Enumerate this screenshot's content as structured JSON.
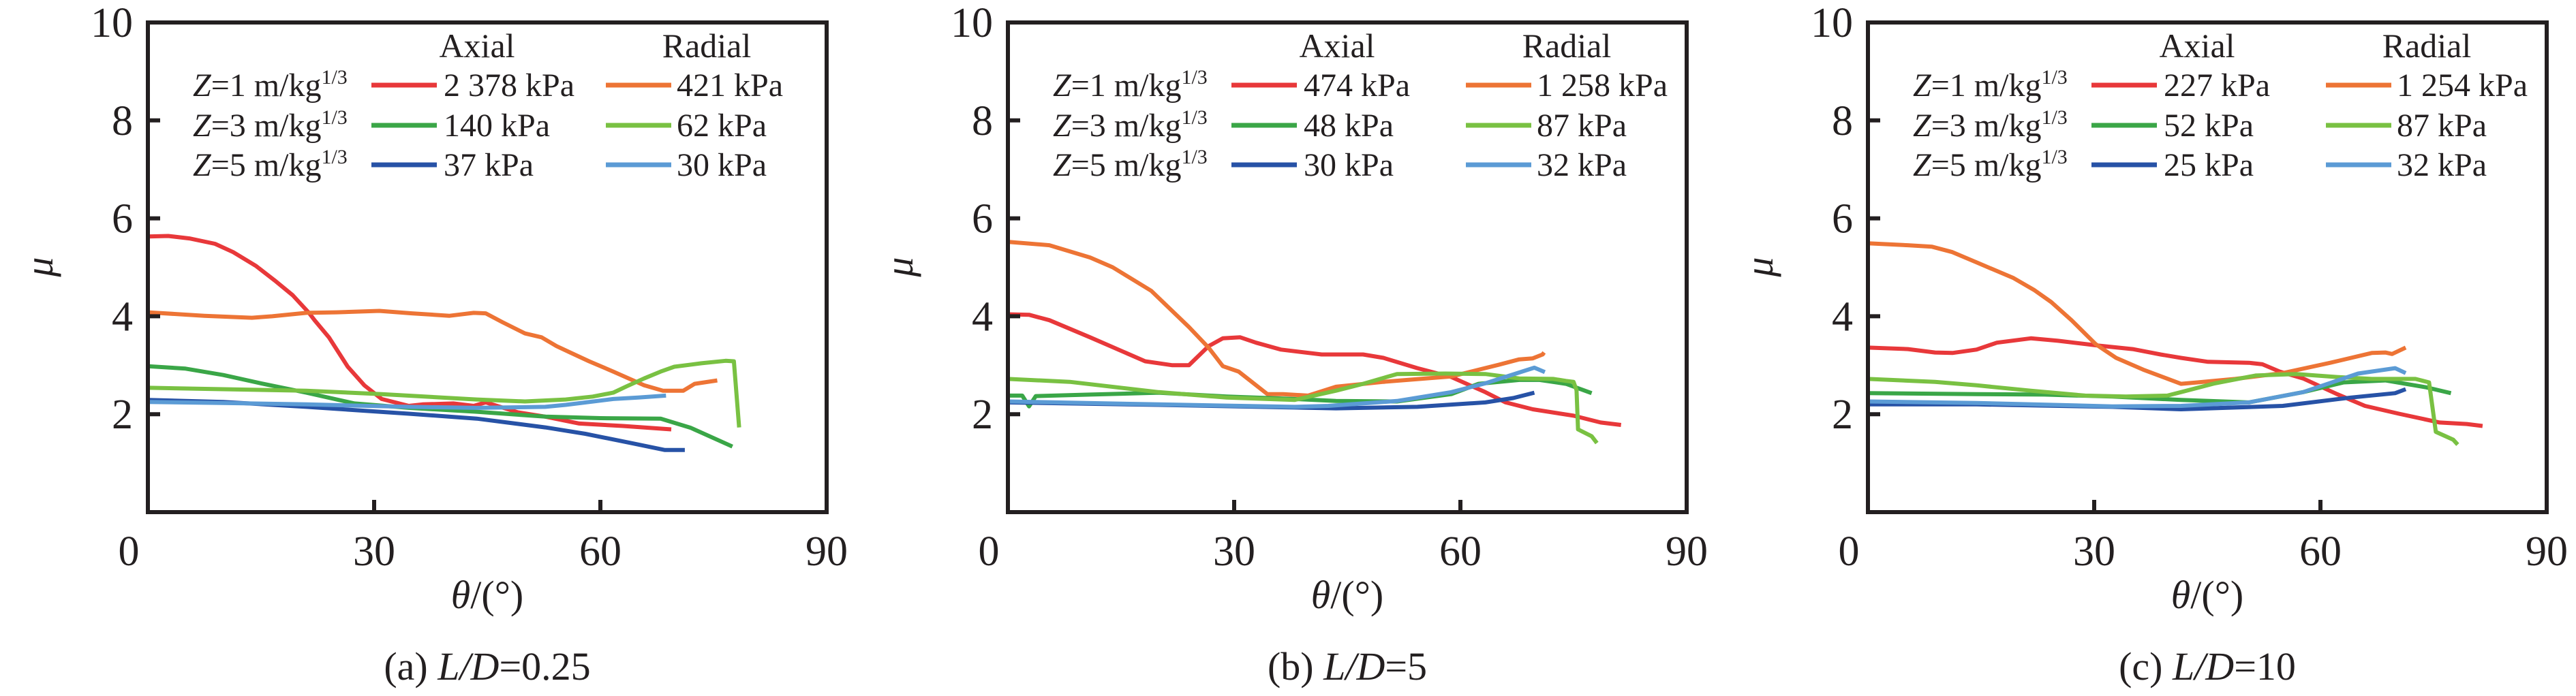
{
  "figure": {
    "panels_count": 3
  },
  "chart_data": [
    {
      "type": "line",
      "caption": "(a) L/D=0.25",
      "caption_prefix": "(a) ",
      "caption_var": "L/D",
      "caption_value": "=0.25",
      "xlabel": "θ/(°)",
      "xlabel_var": "θ",
      "xlabel_unit": "/(°)",
      "ylabel": "μ",
      "xlim": [
        0,
        90
      ],
      "ylim": [
        0,
        10
      ],
      "xticks": [
        0,
        30,
        60,
        90
      ],
      "yticks": [
        2,
        4,
        6,
        8,
        10
      ],
      "grid": false,
      "legend": {
        "placement": "top-right",
        "column_headers": [
          "Axial",
          "Radial"
        ],
        "row_labels": [
          "Z=1 m/kg1/3",
          "Z=3 m/kg1/3",
          "Z=5 m/kg1/3"
        ],
        "row_label_parts": [
          {
            "var": "Z",
            "eq": "=1 m/kg",
            "sup": "1/3"
          },
          {
            "var": "Z",
            "eq": "=3 m/kg",
            "sup": "1/3"
          },
          {
            "var": "Z",
            "eq": "=5 m/kg",
            "sup": "1/3"
          }
        ]
      },
      "series": [
        {
          "name": "Z=1 Axial 2 378 kPa",
          "label": "2 378 kPa",
          "group": "Axial",
          "Z": 1,
          "color": "#e8383a",
          "x": [
            0,
            2.7,
            5.5,
            8.9,
            11.3,
            14.3,
            17,
            19.2,
            21.3,
            22.1,
            24,
            26.5,
            28.7,
            31,
            34.6,
            36.4,
            40.5,
            43.2,
            44.8,
            49,
            52.7,
            57.2,
            63,
            69.4
          ],
          "y": [
            5.63,
            5.64,
            5.59,
            5.48,
            5.31,
            5.03,
            4.71,
            4.43,
            4.08,
            3.92,
            3.57,
            2.97,
            2.59,
            2.31,
            2.17,
            2.2,
            2.22,
            2.17,
            2.24,
            2.04,
            1.95,
            1.81,
            1.76,
            1.69
          ]
        },
        {
          "name": "Z=1 Radial 421 kPa",
          "label": "421 kPa",
          "group": "Radial",
          "Z": 1,
          "color": "#ed7435",
          "x": [
            0,
            7.5,
            13.8,
            16.5,
            21,
            25,
            30.7,
            35,
            40,
            43.2,
            44.8,
            47,
            50,
            52.2,
            54.2,
            56,
            58.5,
            61.7,
            65.8,
            68.3,
            71,
            72.5,
            75.5
          ],
          "y": [
            4.08,
            4.01,
            3.97,
            4.0,
            4.07,
            4.08,
            4.11,
            4.06,
            4.01,
            4.07,
            4.06,
            3.88,
            3.65,
            3.57,
            3.39,
            3.26,
            3.08,
            2.87,
            2.59,
            2.48,
            2.48,
            2.62,
            2.69
          ]
        },
        {
          "name": "Z=3 Axial 140 kPa",
          "label": "140 kPa",
          "group": "Axial",
          "Z": 3,
          "color": "#3aa647",
          "x": [
            0,
            5,
            10,
            15,
            21,
            27.4,
            34.6,
            43.6,
            52.7,
            60,
            68,
            72,
            77.5
          ],
          "y": [
            2.98,
            2.93,
            2.8,
            2.63,
            2.44,
            2.22,
            2.13,
            2.05,
            1.95,
            1.92,
            1.91,
            1.72,
            1.34
          ]
        },
        {
          "name": "Z=3 Radial 62 kPa",
          "label": "62 kPa",
          "group": "Radial",
          "Z": 3,
          "color": "#79c142",
          "x": [
            0,
            10,
            21,
            31,
            43.6,
            50,
            55.4,
            59,
            61.7,
            63.5,
            65.8,
            68,
            69.8,
            73.4,
            76.6,
            77.7,
            78.4
          ],
          "y": [
            2.54,
            2.51,
            2.48,
            2.41,
            2.3,
            2.26,
            2.3,
            2.36,
            2.44,
            2.57,
            2.73,
            2.87,
            2.97,
            3.04,
            3.09,
            3.08,
            1.73
          ]
        },
        {
          "name": "Z=5 Axial 37 kPa",
          "label": "37 kPa",
          "group": "Axial",
          "Z": 5,
          "color": "#2752a6",
          "x": [
            0,
            10,
            21,
            34.6,
            43.6,
            52.7,
            58,
            64.4,
            68.5,
            71.2
          ],
          "y": [
            2.29,
            2.25,
            2.15,
            2.01,
            1.91,
            1.73,
            1.6,
            1.4,
            1.27,
            1.27
          ]
        },
        {
          "name": "Z=5 Radial 30 kPa",
          "label": "30 kPa",
          "group": "Radial",
          "Z": 5,
          "color": "#5b9bd5",
          "x": [
            0,
            10,
            21,
            34.6,
            43.6,
            52.7,
            55.4,
            61.7,
            65,
            68.7
          ],
          "y": [
            2.25,
            2.23,
            2.2,
            2.15,
            2.13,
            2.15,
            2.19,
            2.31,
            2.34,
            2.38
          ]
        }
      ]
    },
    {
      "type": "line",
      "caption": "(b) L/D=5",
      "caption_prefix": "(b) ",
      "caption_var": "L/D",
      "caption_value": "=5",
      "xlabel": "θ/(°)",
      "xlabel_var": "θ",
      "xlabel_unit": "/(°)",
      "ylabel": "μ",
      "xlim": [
        0,
        90
      ],
      "ylim": [
        0,
        10
      ],
      "xticks": [
        0,
        30,
        60,
        90
      ],
      "yticks": [
        2,
        4,
        6,
        8,
        10
      ],
      "grid": false,
      "legend": {
        "placement": "top-right",
        "column_headers": [
          "Axial",
          "Radial"
        ],
        "row_labels": [
          "Z=1 m/kg1/3",
          "Z=3 m/kg1/3",
          "Z=5 m/kg1/3"
        ],
        "row_label_parts": [
          {
            "var": "Z",
            "eq": "=1 m/kg",
            "sup": "1/3"
          },
          {
            "var": "Z",
            "eq": "=3 m/kg",
            "sup": "1/3"
          },
          {
            "var": "Z",
            "eq": "=5 m/kg",
            "sup": "1/3"
          }
        ]
      },
      "series": [
        {
          "name": "Z=1 Axial 474 kPa",
          "label": "474 kPa",
          "group": "Axial",
          "Z": 1,
          "color": "#e8383a",
          "x": [
            0,
            2.8,
            5.5,
            10.9,
            18.2,
            21.8,
            24,
            26.6,
            28.5,
            30.8,
            32.9,
            36.2,
            41.6,
            47.1,
            49.8,
            54.3,
            58.8,
            63.3,
            66,
            69.6,
            75,
            78.6,
            81.3
          ],
          "y": [
            4.04,
            4.03,
            3.92,
            3.57,
            3.08,
            3.0,
            3.0,
            3.39,
            3.55,
            3.57,
            3.46,
            3.32,
            3.22,
            3.22,
            3.15,
            2.94,
            2.76,
            2.45,
            2.24,
            2.1,
            1.97,
            1.83,
            1.78
          ]
        },
        {
          "name": "Z=1 Radial 1 258 kPa",
          "label": "1 258 kPa",
          "group": "Radial",
          "Z": 1,
          "color": "#ed7435",
          "x": [
            0,
            5.5,
            10.9,
            13.9,
            19,
            24,
            26.6,
            28.5,
            30.6,
            34.4,
            36.5,
            39.8,
            43.5,
            49.8,
            58.8,
            65.1,
            67.8,
            69.6,
            70.9,
            71.1
          ],
          "y": [
            5.52,
            5.45,
            5.2,
            5.0,
            4.52,
            3.78,
            3.36,
            2.98,
            2.87,
            2.41,
            2.41,
            2.38,
            2.56,
            2.66,
            2.77,
            3.01,
            3.12,
            3.14,
            3.22,
            3.26
          ]
        },
        {
          "name": "Z=3 Axial 48 kPa",
          "label": "48 kPa",
          "group": "Axial",
          "Z": 3,
          "color": "#3aa647",
          "x": [
            0,
            1.9,
            2.8,
            3.7,
            10.9,
            20,
            29,
            38,
            43.5,
            51.6,
            58.8,
            62.4,
            67.8,
            70.5,
            74,
            77.4
          ],
          "y": [
            2.38,
            2.38,
            2.16,
            2.37,
            2.4,
            2.44,
            2.36,
            2.31,
            2.27,
            2.26,
            2.41,
            2.62,
            2.7,
            2.7,
            2.62,
            2.43
          ]
        },
        {
          "name": "Z=3 Radial 87 kPa",
          "label": "87 kPa",
          "group": "Radial",
          "Z": 3,
          "color": "#79c142",
          "x": [
            0,
            8.2,
            20,
            29,
            38,
            43.5,
            47.1,
            51.6,
            58,
            63.3,
            67.8,
            72.3,
            74,
            75,
            75.4,
            75.6,
            77.4,
            78.1
          ],
          "y": [
            2.72,
            2.66,
            2.45,
            2.34,
            2.29,
            2.48,
            2.62,
            2.82,
            2.83,
            2.82,
            2.73,
            2.72,
            2.68,
            2.66,
            2.49,
            1.69,
            1.55,
            1.41
          ]
        },
        {
          "name": "Z=5 Axial 30 kPa",
          "label": "30 kPa",
          "group": "Axial",
          "Z": 5,
          "color": "#2752a6",
          "x": [
            0,
            20,
            43.5,
            54.3,
            63.3,
            67,
            69.8
          ],
          "y": [
            2.24,
            2.19,
            2.12,
            2.15,
            2.24,
            2.33,
            2.44
          ]
        },
        {
          "name": "Z=5 Radial 32 kPa",
          "label": "32 kPa",
          "group": "Radial",
          "Z": 5,
          "color": "#5b9bd5",
          "x": [
            0,
            20,
            38,
            42.5,
            51.6,
            58.8,
            63.3,
            69.8,
            71.2
          ],
          "y": [
            2.26,
            2.2,
            2.15,
            2.17,
            2.27,
            2.45,
            2.63,
            2.95,
            2.86
          ]
        }
      ]
    },
    {
      "type": "line",
      "caption": "(c) L/D=10",
      "caption_prefix": "(c) ",
      "caption_var": "L/D",
      "caption_value": "=10",
      "xlabel": "θ/(°)",
      "xlabel_var": "θ",
      "xlabel_unit": "/(°)",
      "ylabel": "μ",
      "xlim": [
        0,
        90
      ],
      "ylim": [
        0,
        10
      ],
      "xticks": [
        0,
        30,
        60,
        90
      ],
      "yticks": [
        2,
        4,
        6,
        8,
        10
      ],
      "grid": false,
      "legend": {
        "placement": "top-right",
        "column_headers": [
          "Axial",
          "Radial"
        ],
        "row_labels": [
          "Z=1 m/kg1/3",
          "Z=3 m/kg1/3",
          "Z=5 m/kg1/3"
        ],
        "row_label_parts": [
          {
            "var": "Z",
            "eq": "=1 m/kg",
            "sup": "1/3"
          },
          {
            "var": "Z",
            "eq": "=3 m/kg",
            "sup": "1/3"
          },
          {
            "var": "Z",
            "eq": "=5 m/kg",
            "sup": "1/3"
          }
        ]
      },
      "series": [
        {
          "name": "Z=1 Axial 227 kPa",
          "label": "227 kPa",
          "group": "Axial",
          "Z": 1,
          "color": "#e8383a",
          "x": [
            0,
            5.3,
            8.9,
            11.2,
            14.4,
            17.1,
            21.6,
            25.2,
            30.6,
            35.1,
            38.8,
            41.5,
            45.1,
            50.5,
            52.3,
            54.6,
            57.7,
            62.2,
            65.9,
            70.4,
            75.8,
            79.4,
            81.5
          ],
          "y": [
            3.36,
            3.33,
            3.26,
            3.25,
            3.32,
            3.46,
            3.55,
            3.5,
            3.4,
            3.33,
            3.22,
            3.15,
            3.07,
            3.05,
            3.02,
            2.87,
            2.73,
            2.41,
            2.17,
            2.01,
            1.83,
            1.8,
            1.76
          ]
        },
        {
          "name": "Z=1 Radial 1 254 kPa",
          "label": "1 254 kPa",
          "group": "Radial",
          "Z": 1,
          "color": "#ed7435",
          "x": [
            0,
            5.3,
            8.5,
            11.2,
            14.4,
            19.3,
            22,
            24.3,
            27,
            30.2,
            32.9,
            36.5,
            41.5,
            43.7,
            48.7,
            55,
            61.3,
            66.8,
            68.6,
            69.5,
            71.3
          ],
          "y": [
            5.49,
            5.45,
            5.42,
            5.31,
            5.1,
            4.78,
            4.54,
            4.29,
            3.92,
            3.43,
            3.15,
            2.91,
            2.62,
            2.65,
            2.72,
            2.84,
            3.05,
            3.25,
            3.26,
            3.23,
            3.36
          ]
        },
        {
          "name": "Z=3 Axial 52 kPa",
          "label": "52 kPa",
          "group": "Axial",
          "Z": 3,
          "color": "#3aa647",
          "x": [
            0,
            14.4,
            23.4,
            32.4,
            41.5,
            50.5,
            57.7,
            63.1,
            68.6,
            74,
            77.3
          ],
          "y": [
            2.43,
            2.41,
            2.4,
            2.36,
            2.29,
            2.24,
            2.45,
            2.65,
            2.69,
            2.55,
            2.43
          ]
        },
        {
          "name": "Z=3 Radial 87 kPa",
          "label": "87 kPa",
          "group": "Radial",
          "Z": 3,
          "color": "#79c142",
          "x": [
            0,
            8.9,
            14.4,
            21.6,
            28.8,
            34.2,
            39.7,
            41.5,
            46,
            51.4,
            56.8,
            62.2,
            66.8,
            72.6,
            74.4,
            75.3,
            77.6,
            78.2
          ],
          "y": [
            2.72,
            2.66,
            2.59,
            2.48,
            2.38,
            2.36,
            2.38,
            2.45,
            2.63,
            2.79,
            2.82,
            2.76,
            2.72,
            2.72,
            2.65,
            1.64,
            1.48,
            1.38
          ]
        },
        {
          "name": "Z=5 Axial 25 kPa",
          "label": "25 kPa",
          "group": "Axial",
          "Z": 5,
          "color": "#2752a6",
          "x": [
            0,
            14.4,
            32.4,
            41.5,
            55,
            64,
            69.9,
            71.3
          ],
          "y": [
            2.2,
            2.2,
            2.15,
            2.1,
            2.17,
            2.34,
            2.43,
            2.51
          ]
        },
        {
          "name": "Z=5 Radial 32 kPa",
          "label": "32 kPa",
          "group": "Radial",
          "Z": 5,
          "color": "#5b9bd5",
          "x": [
            0,
            14.4,
            32.4,
            41.5,
            50.5,
            57.7,
            65,
            69.9,
            71.3
          ],
          "y": [
            2.26,
            2.23,
            2.16,
            2.17,
            2.24,
            2.45,
            2.83,
            2.94,
            2.84
          ]
        }
      ]
    }
  ]
}
